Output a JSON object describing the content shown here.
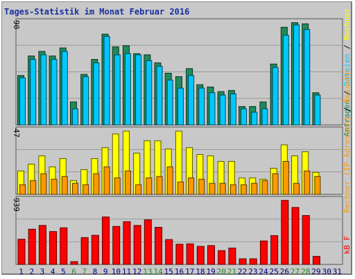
{
  "title": "Tages-Statistik im Monat Februar 2016",
  "colors": {
    "background": "#c8c8c8",
    "gridline": "#9a9a9a",
    "title": "#1b2fa0",
    "hits": "#1f8a5a",
    "files": "#00c8ff",
    "sites": "#ffff00",
    "visits": "#ff9900",
    "kbytes": "#ff0000",
    "weekend_day": "#2a8a2a",
    "weekday": "#000080"
  },
  "chart_data": [
    {
      "type": "bar",
      "panel": "top",
      "max_label": "90",
      "ylim": [
        0,
        90
      ],
      "categories": [
        "1",
        "2",
        "3",
        "4",
        "5",
        "6",
        "7",
        "8",
        "9",
        "10",
        "11",
        "12",
        "13",
        "14",
        "15",
        "16",
        "17",
        "18",
        "19",
        "20",
        "21",
        "22",
        "23",
        "24",
        "25",
        "26",
        "27",
        "28",
        "29",
        "30",
        "31"
      ],
      "series": [
        {
          "name": "Anfragen",
          "values": [
            43,
            60,
            64,
            60,
            67,
            20,
            44,
            57,
            79,
            68,
            69,
            62,
            61,
            54,
            45,
            42,
            49,
            35,
            33,
            29,
            30,
            16,
            16,
            20,
            53,
            85,
            89,
            88,
            28,
            null,
            null
          ]
        },
        {
          "name": "Dateien",
          "values": [
            41,
            57,
            61,
            57,
            64,
            14,
            42,
            54,
            77,
            61,
            62,
            61,
            56,
            51,
            39,
            32,
            43,
            32,
            28,
            26,
            27,
            14,
            11,
            14,
            50,
            78,
            87,
            83,
            26,
            null,
            null
          ]
        }
      ],
      "legend": [
        "Anfragen",
        "/",
        "Dateien",
        "/",
        "Rechner"
      ]
    },
    {
      "type": "bar",
      "panel": "middle",
      "max_label": "47",
      "ylim": [
        0,
        47
      ],
      "categories": [
        "1",
        "2",
        "3",
        "4",
        "5",
        "6",
        "7",
        "8",
        "9",
        "10",
        "11",
        "12",
        "13",
        "14",
        "15",
        "16",
        "17",
        "18",
        "19",
        "20",
        "21",
        "22",
        "23",
        "24",
        "25",
        "26",
        "27",
        "28",
        "29",
        "30",
        "31"
      ],
      "series": [
        {
          "name": "Rechner",
          "values": [
            17,
            22,
            28,
            20,
            26,
            10,
            18,
            26,
            34,
            44,
            46,
            30,
            39,
            39,
            33,
            46,
            34,
            29,
            28,
            24,
            24,
            12,
            12,
            11,
            19,
            36,
            28,
            31,
            16,
            null,
            null
          ]
        },
        {
          "name": "Besuche",
          "values": [
            7,
            10,
            15,
            11,
            13,
            8,
            7,
            15,
            20,
            12,
            17,
            7,
            12,
            13,
            20,
            9,
            12,
            11,
            8,
            8,
            7,
            7,
            8,
            10,
            15,
            24,
            8,
            17,
            13,
            null,
            null
          ]
        }
      ],
      "legend": [
        "Rechner",
        "(IP-Adressen)",
        "/",
        "Besuche"
      ]
    },
    {
      "type": "bar",
      "panel": "bottom",
      "max_label": "939",
      "ylim": [
        0,
        939
      ],
      "categories": [
        "1",
        "2",
        "3",
        "4",
        "5",
        "6",
        "7",
        "8",
        "9",
        "10",
        "11",
        "12",
        "13",
        "14",
        "15",
        "16",
        "17",
        "18",
        "19",
        "20",
        "21",
        "22",
        "23",
        "24",
        "25",
        "26",
        "27",
        "28",
        "29",
        "30",
        "31"
      ],
      "series": [
        {
          "name": "kB F",
          "values": [
            363,
            507,
            561,
            473,
            527,
            40,
            386,
            419,
            683,
            547,
            615,
            561,
            642,
            534,
            358,
            291,
            296,
            260,
            271,
            199,
            236,
            81,
            81,
            338,
            415,
            922,
            820,
            704,
            116,
            null,
            null
          ]
        }
      ],
      "legend": [
        "kB F"
      ]
    }
  ],
  "days": [
    "1",
    "2",
    "3",
    "4",
    "5",
    "6",
    "7",
    "8",
    "9",
    "10",
    "11",
    "12",
    "13",
    "14",
    "15",
    "16",
    "17",
    "18",
    "19",
    "20",
    "21",
    "22",
    "23",
    "24",
    "25",
    "26",
    "27",
    "28",
    "29",
    "30",
    "31"
  ],
  "weekend_days": [
    "6",
    "7",
    "13",
    "14",
    "20",
    "21",
    "27",
    "28"
  ]
}
